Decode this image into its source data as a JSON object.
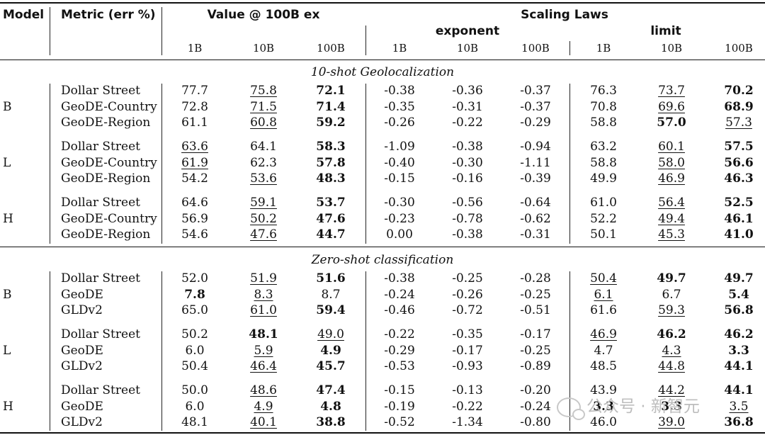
{
  "header": {
    "model": "Model",
    "metric": "Metric (err %)",
    "value_group": "Value @ 100B ex",
    "scaling_group": "Scaling Laws",
    "exponent": "exponent",
    "limit": "limit",
    "sizes": [
      "1B",
      "10B",
      "100B",
      "1B",
      "10B",
      "100B",
      "1B",
      "10B",
      "100B"
    ]
  },
  "sections": [
    {
      "title": "10-shot Geolocalization",
      "groups": [
        {
          "model": "B",
          "rows": [
            {
              "metric": "Dollar Street",
              "cells": [
                {
                  "v": "77.7"
                },
                {
                  "v": "75.8",
                  "u": true
                },
                {
                  "v": "72.1",
                  "b": true
                },
                {
                  "v": "-0.38"
                },
                {
                  "v": "-0.36"
                },
                {
                  "v": "-0.37"
                },
                {
                  "v": "76.3"
                },
                {
                  "v": "73.7",
                  "u": true
                },
                {
                  "v": "70.2",
                  "b": true
                }
              ]
            },
            {
              "metric": "GeoDE-Country",
              "cells": [
                {
                  "v": "72.8"
                },
                {
                  "v": "71.5",
                  "u": true
                },
                {
                  "v": "71.4",
                  "b": true
                },
                {
                  "v": "-0.35"
                },
                {
                  "v": "-0.31"
                },
                {
                  "v": "-0.37"
                },
                {
                  "v": "70.8"
                },
                {
                  "v": "69.6",
                  "u": true
                },
                {
                  "v": "68.9",
                  "b": true
                }
              ]
            },
            {
              "metric": "GeoDE-Region",
              "cells": [
                {
                  "v": "61.1"
                },
                {
                  "v": "60.8",
                  "u": true
                },
                {
                  "v": "59.2",
                  "b": true
                },
                {
                  "v": "-0.26"
                },
                {
                  "v": "-0.22"
                },
                {
                  "v": "-0.29"
                },
                {
                  "v": "58.8"
                },
                {
                  "v": "57.0",
                  "b": true
                },
                {
                  "v": "57.3",
                  "u": true
                }
              ]
            }
          ]
        },
        {
          "model": "L",
          "rows": [
            {
              "metric": "Dollar Street",
              "cells": [
                {
                  "v": "63.6",
                  "u": true
                },
                {
                  "v": "64.1"
                },
                {
                  "v": "58.3",
                  "b": true
                },
                {
                  "v": "-1.09"
                },
                {
                  "v": "-0.38"
                },
                {
                  "v": "-0.94"
                },
                {
                  "v": "63.2"
                },
                {
                  "v": "60.1",
                  "u": true
                },
                {
                  "v": "57.5",
                  "b": true
                }
              ]
            },
            {
              "metric": "GeoDE-Country",
              "cells": [
                {
                  "v": "61.9",
                  "u": true
                },
                {
                  "v": "62.3"
                },
                {
                  "v": "57.8",
                  "b": true
                },
                {
                  "v": "-0.40"
                },
                {
                  "v": "-0.30"
                },
                {
                  "v": "-1.11"
                },
                {
                  "v": "58.8"
                },
                {
                  "v": "58.0",
                  "u": true
                },
                {
                  "v": "56.6",
                  "b": true
                }
              ]
            },
            {
              "metric": "GeoDE-Region",
              "cells": [
                {
                  "v": "54.2"
                },
                {
                  "v": "53.6",
                  "u": true
                },
                {
                  "v": "48.3",
                  "b": true
                },
                {
                  "v": "-0.15"
                },
                {
                  "v": "-0.16"
                },
                {
                  "v": "-0.39"
                },
                {
                  "v": "49.9"
                },
                {
                  "v": "46.9",
                  "u": true
                },
                {
                  "v": "46.3",
                  "b": true
                }
              ]
            }
          ]
        },
        {
          "model": "H",
          "rows": [
            {
              "metric": "Dollar Street",
              "cells": [
                {
                  "v": "64.6"
                },
                {
                  "v": "59.1",
                  "u": true
                },
                {
                  "v": "53.7",
                  "b": true
                },
                {
                  "v": "-0.30"
                },
                {
                  "v": "-0.56"
                },
                {
                  "v": "-0.64"
                },
                {
                  "v": "61.0"
                },
                {
                  "v": "56.4",
                  "u": true
                },
                {
                  "v": "52.5",
                  "b": true
                }
              ]
            },
            {
              "metric": "GeoDE-Country",
              "cells": [
                {
                  "v": "56.9"
                },
                {
                  "v": "50.2",
                  "u": true
                },
                {
                  "v": "47.6",
                  "b": true
                },
                {
                  "v": "-0.23"
                },
                {
                  "v": "-0.78"
                },
                {
                  "v": "-0.62"
                },
                {
                  "v": "52.2"
                },
                {
                  "v": "49.4",
                  "u": true
                },
                {
                  "v": "46.1",
                  "b": true
                }
              ]
            },
            {
              "metric": "GeoDE-Region",
              "cells": [
                {
                  "v": "54.6"
                },
                {
                  "v": "47.6",
                  "u": true
                },
                {
                  "v": "44.7",
                  "b": true
                },
                {
                  "v": "0.00"
                },
                {
                  "v": "-0.38"
                },
                {
                  "v": "-0.31"
                },
                {
                  "v": "50.1"
                },
                {
                  "v": "45.3",
                  "u": true
                },
                {
                  "v": "41.0",
                  "b": true
                }
              ]
            }
          ]
        }
      ]
    },
    {
      "title": "Zero-shot classification",
      "groups": [
        {
          "model": "B",
          "rows": [
            {
              "metric": "Dollar Street",
              "cells": [
                {
                  "v": "52.0"
                },
                {
                  "v": "51.9",
                  "u": true
                },
                {
                  "v": "51.6",
                  "b": true
                },
                {
                  "v": "-0.38"
                },
                {
                  "v": "-0.25"
                },
                {
                  "v": "-0.28"
                },
                {
                  "v": "50.4",
                  "u": true
                },
                {
                  "v": "49.7",
                  "b": true
                },
                {
                  "v": "49.7",
                  "b": true
                }
              ]
            },
            {
              "metric": "GeoDE",
              "cells": [
                {
                  "v": "7.8",
                  "b": true
                },
                {
                  "v": "8.3",
                  "u": true
                },
                {
                  "v": "8.7"
                },
                {
                  "v": "-0.24"
                },
                {
                  "v": "-0.26"
                },
                {
                  "v": "-0.25"
                },
                {
                  "v": "6.1",
                  "u": true
                },
                {
                  "v": "6.7"
                },
                {
                  "v": "5.4",
                  "b": true
                }
              ]
            },
            {
              "metric": "GLDv2",
              "cells": [
                {
                  "v": "65.0"
                },
                {
                  "v": "61.0",
                  "u": true
                },
                {
                  "v": "59.4",
                  "b": true
                },
                {
                  "v": "-0.46"
                },
                {
                  "v": "-0.72"
                },
                {
                  "v": "-0.51"
                },
                {
                  "v": "61.6"
                },
                {
                  "v": "59.3",
                  "u": true
                },
                {
                  "v": "56.8",
                  "b": true
                }
              ]
            }
          ]
        },
        {
          "model": "L",
          "rows": [
            {
              "metric": "Dollar Street",
              "cells": [
                {
                  "v": "50.2"
                },
                {
                  "v": "48.1",
                  "b": true
                },
                {
                  "v": "49.0",
                  "u": true
                },
                {
                  "v": "-0.22"
                },
                {
                  "v": "-0.35"
                },
                {
                  "v": "-0.17"
                },
                {
                  "v": "46.9",
                  "u": true
                },
                {
                  "v": "46.2",
                  "b": true
                },
                {
                  "v": "46.2",
                  "b": true
                }
              ]
            },
            {
              "metric": "GeoDE",
              "cells": [
                {
                  "v": "6.0"
                },
                {
                  "v": "5.9",
                  "u": true
                },
                {
                  "v": "4.9",
                  "b": true
                },
                {
                  "v": "-0.29"
                },
                {
                  "v": "-0.17"
                },
                {
                  "v": "-0.25"
                },
                {
                  "v": "4.7"
                },
                {
                  "v": "4.3",
                  "u": true
                },
                {
                  "v": "3.3",
                  "b": true
                }
              ]
            },
            {
              "metric": "GLDv2",
              "cells": [
                {
                  "v": "50.4"
                },
                {
                  "v": "46.4",
                  "u": true
                },
                {
                  "v": "45.7",
                  "b": true
                },
                {
                  "v": "-0.53"
                },
                {
                  "v": "-0.93"
                },
                {
                  "v": "-0.89"
                },
                {
                  "v": "48.5"
                },
                {
                  "v": "44.8",
                  "u": true
                },
                {
                  "v": "44.1",
                  "b": true
                }
              ]
            }
          ]
        },
        {
          "model": "H",
          "rows": [
            {
              "metric": "Dollar Street",
              "cells": [
                {
                  "v": "50.0"
                },
                {
                  "v": "48.6",
                  "u": true
                },
                {
                  "v": "47.4",
                  "b": true
                },
                {
                  "v": "-0.15"
                },
                {
                  "v": "-0.13"
                },
                {
                  "v": "-0.20"
                },
                {
                  "v": "43.9"
                },
                {
                  "v": "44.2",
                  "u": true
                },
                {
                  "v": "44.1",
                  "b": true
                }
              ]
            },
            {
              "metric": "GeoDE",
              "cells": [
                {
                  "v": "6.0"
                },
                {
                  "v": "4.9",
                  "u": true
                },
                {
                  "v": "4.8",
                  "b": true
                },
                {
                  "v": "-0.19"
                },
                {
                  "v": "-0.22"
                },
                {
                  "v": "-0.24"
                },
                {
                  "v": "3.3",
                  "b": true
                },
                {
                  "v": "3.3",
                  "b": true
                },
                {
                  "v": "3.5",
                  "u": true
                }
              ]
            },
            {
              "metric": "GLDv2",
              "cells": [
                {
                  "v": "48.1"
                },
                {
                  "v": "40.1",
                  "u": true
                },
                {
                  "v": "38.8",
                  "b": true
                },
                {
                  "v": "-0.52"
                },
                {
                  "v": "-1.34"
                },
                {
                  "v": "-0.80"
                },
                {
                  "v": "46.0"
                },
                {
                  "v": "39.0",
                  "u": true
                },
                {
                  "v": "36.8",
                  "b": true
                }
              ]
            }
          ]
        }
      ]
    }
  ],
  "watermark": {
    "text": "公众号 · 新智元",
    "icon": "wechat-icon"
  }
}
